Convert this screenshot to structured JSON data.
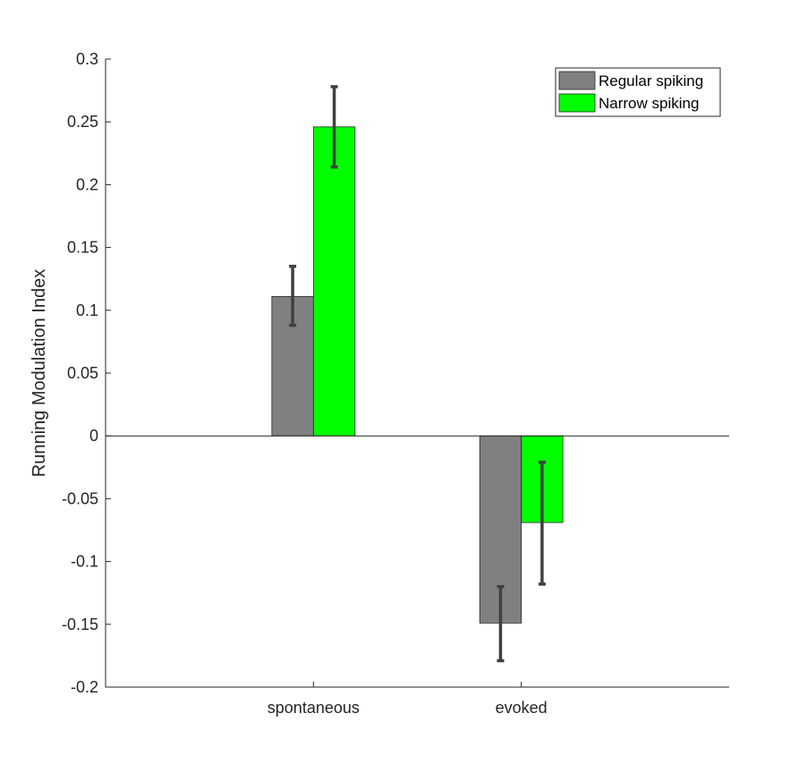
{
  "chart_data": {
    "type": "bar",
    "title": "",
    "xlabel": "",
    "ylabel": "Running Modulation Index",
    "categories": [
      "spontaneous",
      "evoked"
    ],
    "ylim": [
      -0.2,
      0.3
    ],
    "xlim": [
      0,
      3
    ],
    "yticks": [
      -0.2,
      -0.15,
      -0.1,
      -0.05,
      0,
      0.05,
      0.1,
      0.15,
      0.2,
      0.25,
      0.3
    ],
    "ytick_labels": [
      "-0.2",
      "-0.15",
      "-0.1",
      "-0.05",
      "0",
      "0.05",
      "0.1",
      "0.15",
      "0.2",
      "0.25",
      "0.3"
    ],
    "grid": false,
    "legend_position": "top-right",
    "errorbar_color": "#404040",
    "series": [
      {
        "name": "Regular spiking",
        "color": "#808080",
        "values": [
          0.111,
          -0.149
        ],
        "err_low": [
          0.088,
          -0.179
        ],
        "err_high": [
          0.135,
          -0.12
        ]
      },
      {
        "name": "Narrow spiking",
        "color": "#00ff00",
        "values": [
          0.246,
          -0.069
        ],
        "err_low": [
          0.214,
          -0.118
        ],
        "err_high": [
          0.278,
          -0.021
        ]
      }
    ]
  }
}
